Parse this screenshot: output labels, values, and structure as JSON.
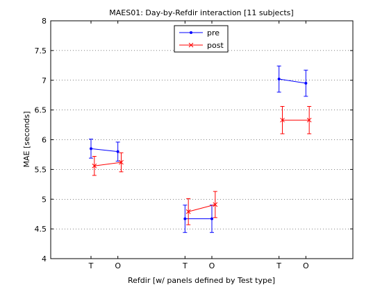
{
  "chart_data": {
    "type": "line",
    "title": "MAES01: Day-by-Refdir interaction  [11 subjects]",
    "xlabel": "Refdir  [w/ panels defined by Test type]",
    "ylabel": "MAE [seconds]",
    "ylim": [
      4,
      8
    ],
    "yticks": [
      "4",
      "4.5",
      "5",
      "5.5",
      "6",
      "6.5",
      "7",
      "7.5",
      "8"
    ],
    "xlim": [
      0,
      9
    ],
    "xticks": [
      {
        "x": 1.2,
        "label": "T"
      },
      {
        "x": 2.0,
        "label": "O"
      },
      {
        "x": 4.0,
        "label": "T"
      },
      {
        "x": 4.8,
        "label": "O"
      },
      {
        "x": 6.8,
        "label": "T"
      },
      {
        "x": 7.6,
        "label": "O"
      }
    ],
    "grid": "horizontal-dotted",
    "legend_placement": "top-center",
    "series": [
      {
        "name": "pre",
        "color": "#0000ff",
        "marker": "dot",
        "panels": [
          {
            "x": [
              1.2,
              2.0
            ],
            "y": [
              5.85,
              5.8
            ],
            "err": [
              0.16,
              0.16
            ]
          },
          {
            "x": [
              4.0,
              4.8
            ],
            "y": [
              4.67,
              4.67
            ],
            "err": [
              0.23,
              0.23
            ]
          },
          {
            "x": [
              6.8,
              7.6
            ],
            "y": [
              7.02,
              6.95
            ],
            "err": [
              0.22,
              0.22
            ]
          }
        ]
      },
      {
        "name": "post",
        "color": "#ff0000",
        "marker": "x",
        "panels": [
          {
            "x": [
              1.3,
              2.1
            ],
            "y": [
              5.56,
              5.62
            ],
            "err": [
              0.16,
              0.16
            ]
          },
          {
            "x": [
              4.1,
              4.9
            ],
            "y": [
              4.79,
              4.91
            ],
            "err": [
              0.22,
              0.22
            ]
          },
          {
            "x": [
              6.9,
              7.7
            ],
            "y": [
              6.33,
              6.33
            ],
            "err": [
              0.23,
              0.23
            ]
          }
        ]
      }
    ]
  }
}
